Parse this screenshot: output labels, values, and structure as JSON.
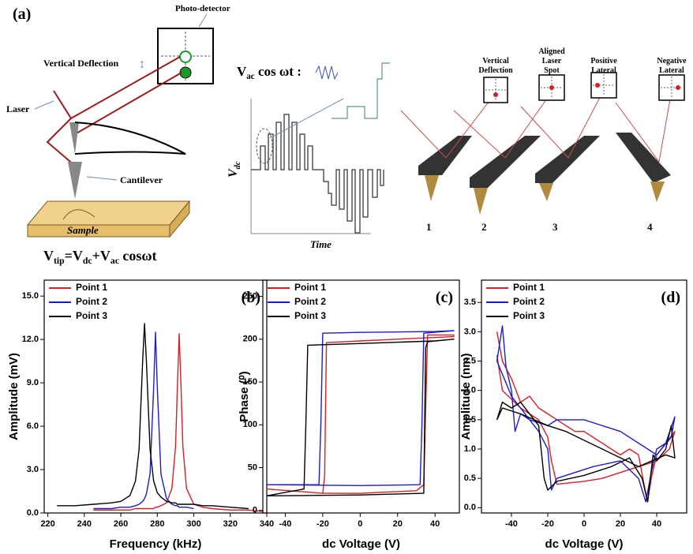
{
  "panel_a": {
    "label": "(a)",
    "left": {
      "photo_detector": "Photo-detector",
      "vertical_deflection": "Vertical Deflection",
      "laser": "Laser",
      "cantilever": "Cantilever",
      "sample": "Sample",
      "formula": [
        "V",
        "tip",
        "=V",
        "dc",
        "+V",
        "ac",
        " cosωt"
      ]
    },
    "middle": {
      "formula": [
        "V",
        "ac",
        " cos ωt :"
      ],
      "y_label": [
        "V",
        "dc"
      ],
      "x_label": "Time"
    },
    "right": {
      "labels": [
        [
          "Vertical",
          "Deflection"
        ],
        [
          "Aligned",
          "Laser",
          "Spot"
        ],
        [
          "Positive",
          "Lateral"
        ],
        [
          "Negative",
          "Lateral"
        ]
      ],
      "numbers": [
        "1",
        "2",
        "3",
        "4"
      ]
    }
  },
  "chart_data": [
    {
      "type": "line",
      "panel_label": "(b)",
      "x_label": "Frequency (kHz)",
      "y_label": "Amplitude (mV)",
      "xlim": [
        218,
        340
      ],
      "ylim": [
        0,
        16.1
      ],
      "xticks": [
        220,
        240,
        260,
        280,
        300,
        320,
        340
      ],
      "yticks": [
        {
          "value": 0,
          "label": "0.0"
        },
        {
          "value": 3,
          "label": "3.0"
        },
        {
          "value": 6,
          "label": "6.0"
        },
        {
          "value": 9,
          "label": "9.0"
        },
        {
          "value": 12,
          "label": "12.0"
        },
        {
          "value": 15,
          "label": "15.0"
        }
      ],
      "legend": "upper left",
      "x": [
        225,
        235,
        245,
        255,
        260,
        265,
        268,
        270,
        272,
        273,
        274,
        276,
        278,
        279,
        280,
        282,
        285,
        288,
        290,
        291,
        292,
        293,
        294,
        296,
        300,
        305,
        310,
        320,
        330,
        338
      ],
      "series": [
        {
          "name": "Point 1",
          "color": "#d42020",
          "values": [
            null,
            null,
            0.2,
            0.2,
            0.2,
            0.2,
            0.3,
            0.3,
            0.3,
            0.3,
            0.3,
            0.3,
            0.3,
            0.4,
            0.4,
            0.5,
            0.7,
            1.7,
            4.6,
            8.6,
            12.4,
            8.6,
            4.6,
            1.7,
            0.6,
            0.4,
            0.3,
            0.2,
            0.2,
            0.1
          ]
        },
        {
          "name": "Point 2",
          "color": "#1c1cc8",
          "values": [
            null,
            null,
            0.3,
            0.3,
            0.4,
            0.4,
            0.5,
            0.6,
            0.8,
            1.0,
            1.3,
            2.7,
            8.7,
            12.5,
            8.7,
            2.7,
            1.0,
            0.6,
            0.5,
            0.5,
            0.4,
            0.4,
            0.4,
            0.4,
            0.3,
            null,
            null,
            null,
            null,
            null
          ]
        },
        {
          "name": "Point 3",
          "color": "#000000",
          "values": [
            0.5,
            0.5,
            0.6,
            0.7,
            0.8,
            1.2,
            2.2,
            4.4,
            10.6,
            13.1,
            10.6,
            4.4,
            2.2,
            1.8,
            1.4,
            1.1,
            0.8,
            0.7,
            0.7,
            0.6,
            0.6,
            0.6,
            0.6,
            0.6,
            0.6,
            0.5,
            0.5,
            0.4,
            0.3,
            null
          ]
        }
      ]
    },
    {
      "type": "line",
      "panel_label": "(c)",
      "x_label": "dc Voltage (V)",
      "y_label": "Phase (⁰)",
      "xlim": [
        -52,
        53
      ],
      "ylim": [
        -3,
        269
      ],
      "xticks": [
        -40,
        -20,
        0,
        20,
        40
      ],
      "yticks": [
        0,
        50,
        100,
        150,
        200,
        250
      ],
      "legend": "upper left",
      "series": [
        {
          "name": "Point 1",
          "color": "#d42020",
          "x": [
            -50,
            -20,
            0,
            30,
            34,
            36,
            50,
            50,
            20,
            0,
            -18,
            -19,
            -20
          ],
          "values": [
            25,
            20,
            20,
            23,
            30,
            205,
            205,
            203,
            200,
            198,
            196,
            40,
            20
          ]
        },
        {
          "name": "Point 2",
          "color": "#1c1cc8",
          "x": [
            -50,
            0,
            32,
            33,
            34,
            50,
            40,
            0,
            -20,
            -21,
            -22,
            -50
          ],
          "values": [
            30,
            29,
            30,
            100,
            207,
            210,
            209,
            208,
            207,
            100,
            30,
            30
          ]
        },
        {
          "name": "Point 3",
          "color": "#000000",
          "x": [
            -50,
            0,
            34,
            35,
            36,
            50,
            40,
            0,
            -28,
            -29,
            -30,
            -50
          ],
          "values": [
            17,
            18,
            20,
            190,
            197,
            200,
            198,
            195,
            193,
            100,
            25,
            17
          ]
        }
      ]
    },
    {
      "type": "line",
      "panel_label": "(d)",
      "x_label": "dc Voltage (V)",
      "y_label": "Amplitude (nm)",
      "xlim": [
        -56.5,
        56.5
      ],
      "ylim": [
        -0.09,
        3.88
      ],
      "xticks": [
        -40,
        -20,
        0,
        20,
        40
      ],
      "yticks": [
        {
          "value": 0,
          "label": "0.0"
        },
        {
          "value": 0.5,
          "label": "0.5"
        },
        {
          "value": 1,
          "label": "1.0"
        },
        {
          "value": 1.5,
          "label": "1.5"
        },
        {
          "value": 2,
          "label": "2.0"
        },
        {
          "value": 2.5,
          "label": "2.5"
        },
        {
          "value": 3,
          "label": "3.0"
        },
        {
          "value": 3.5,
          "label": "3.5"
        }
      ],
      "legend": "upper left",
      "series": [
        {
          "name": "Point 1",
          "color": "#d42020",
          "x": [
            -48,
            -45,
            -40,
            -35,
            -30,
            -25,
            -20,
            -15,
            -10,
            -5,
            0,
            5,
            10,
            15,
            20,
            25,
            30,
            33,
            35,
            37,
            40,
            45,
            50,
            47,
            40,
            30,
            20,
            10,
            0,
            -15,
            -18,
            -20,
            -25,
            -35,
            -45,
            -48
          ],
          "values": [
            3.0,
            2.5,
            2.2,
            1.8,
            1.9,
            1.7,
            1.6,
            1.5,
            1.4,
            1.3,
            1.3,
            1.2,
            1.1,
            1.0,
            0.9,
            1.0,
            0.9,
            0.4,
            0.1,
            0.5,
            0.9,
            1.1,
            1.3,
            1.0,
            0.8,
            0.7,
            0.6,
            0.5,
            0.45,
            0.4,
            0.8,
            1.2,
            1.5,
            1.7,
            2.0,
            2.6
          ]
        },
        {
          "name": "Point 2",
          "color": "#1c1cc8",
          "x": [
            -48,
            -45,
            -43,
            -40,
            -38,
            -35,
            -30,
            -25,
            -20,
            -18,
            -15,
            -5,
            5,
            20,
            30,
            34,
            37,
            40,
            45,
            50,
            48,
            40,
            20,
            0,
            -15,
            -20,
            -30,
            -40,
            -48
          ],
          "values": [
            2.5,
            3.1,
            2.4,
            2.0,
            1.3,
            1.6,
            1.5,
            1.3,
            1.0,
            0.3,
            0.5,
            0.6,
            0.7,
            0.8,
            0.5,
            0.1,
            0.6,
            1.0,
            1.1,
            1.55,
            1.2,
            0.9,
            1.3,
            1.5,
            1.5,
            1.4,
            1.5,
            1.9,
            2.5
          ]
        },
        {
          "name": "Point 3",
          "color": "#000000",
          "x": [
            -48,
            -45,
            -40,
            -35,
            -30,
            -25,
            -22,
            -20,
            -15,
            0,
            15,
            25,
            32,
            35,
            38,
            40,
            45,
            48,
            50,
            45,
            30,
            10,
            -10,
            -20,
            -35,
            -45,
            -48
          ],
          "values": [
            1.5,
            1.8,
            1.7,
            1.8,
            1.6,
            1.4,
            0.5,
            0.3,
            0.45,
            0.55,
            0.7,
            0.85,
            0.5,
            0.1,
            0.9,
            0.8,
            1.0,
            1.4,
            0.85,
            0.9,
            0.7,
            1.0,
            1.3,
            1.4,
            1.6,
            1.7,
            1.5
          ]
        }
      ]
    }
  ]
}
